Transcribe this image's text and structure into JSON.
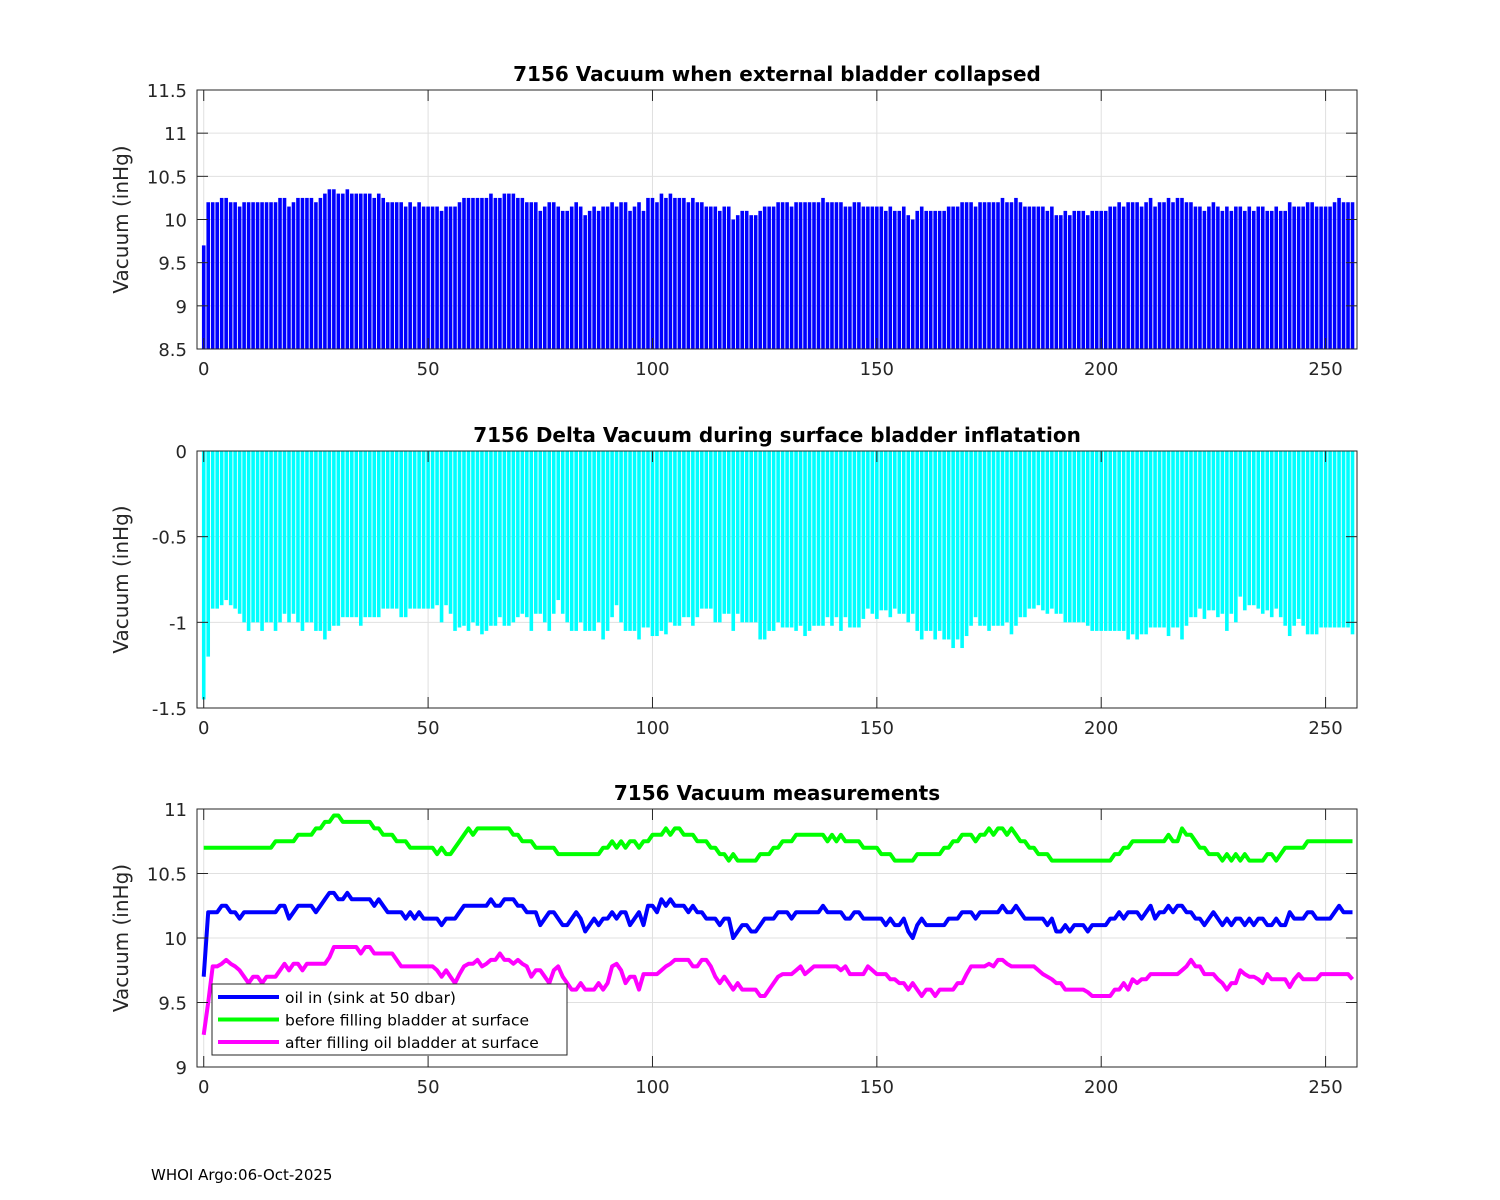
{
  "footer": "WHOI Argo:06-Oct-2025",
  "colors": {
    "oil_in": "#0000ff",
    "before": "#00ff00",
    "after": "#ff00ff",
    "delta_bar": "#00ffff",
    "grid": "#e0e0e0",
    "axis": "#262626"
  },
  "chart_data": [
    {
      "type": "bar",
      "title": "7156 Vacuum when external bladder collapsed",
      "xlabel": "",
      "ylabel": "Vacuum (inHg)",
      "xlim": [
        -1.5,
        257
      ],
      "ylim": [
        8.5,
        11.5
      ],
      "xticks": [
        0,
        50,
        100,
        150,
        200,
        250
      ],
      "yticks": [
        8.5,
        9,
        9.5,
        10,
        10.5,
        11,
        11.5
      ],
      "ytick_labels": [
        "8.5",
        "9",
        "9.5",
        "10",
        "10.5",
        "11",
        "11.5"
      ],
      "grid": true,
      "values_from": "oil_in"
    },
    {
      "type": "bar",
      "title": "7156 Delta Vacuum during surface bladder inflatation",
      "xlabel": "",
      "ylabel": "Vacuum (inHg)",
      "xlim": [
        -1.5,
        257
      ],
      "ylim": [
        -1.5,
        0
      ],
      "xticks": [
        0,
        50,
        100,
        150,
        200,
        250
      ],
      "yticks": [
        -1.5,
        -1,
        -0.5,
        0
      ],
      "ytick_labels": [
        "-1.5",
        "-1",
        "-0.5",
        "0"
      ],
      "grid": true,
      "values_from": "after minus before"
    },
    {
      "type": "line",
      "title": "7156 Vacuum measurements",
      "xlabel": "",
      "ylabel": "Vacuum (inHg)",
      "xlim": [
        -1.5,
        257
      ],
      "ylim": [
        9,
        11
      ],
      "xticks": [
        0,
        50,
        100,
        150,
        200,
        250
      ],
      "yticks": [
        9,
        9.5,
        10,
        10.5,
        11
      ],
      "ytick_labels": [
        "9",
        "9.5",
        "10",
        "10.5",
        "11"
      ],
      "grid": true,
      "legend_position": "bottom-left",
      "series": [
        {
          "key": "oil_in",
          "name": "oil in (sink at 50 dbar)",
          "values": [
            9.7,
            10.2,
            10.2,
            10.2,
            10.25,
            10.25,
            10.2,
            10.2,
            10.15,
            10.2,
            10.2,
            10.2,
            10.2,
            10.2,
            10.2,
            10.2,
            10.2,
            10.25,
            10.25,
            10.15,
            10.2,
            10.25,
            10.25,
            10.25,
            10.25,
            10.2,
            10.25,
            10.3,
            10.35,
            10.35,
            10.3,
            10.3,
            10.35,
            10.3,
            10.3,
            10.3,
            10.3,
            10.3,
            10.25,
            10.3,
            10.25,
            10.2,
            10.2,
            10.2,
            10.2,
            10.15,
            10.2,
            10.15,
            10.2,
            10.15,
            10.15,
            10.15,
            10.15,
            10.1,
            10.15,
            10.15,
            10.15,
            10.2,
            10.25,
            10.25,
            10.25,
            10.25,
            10.25,
            10.25,
            10.3,
            10.25,
            10.25,
            10.3,
            10.3,
            10.3,
            10.25,
            10.25,
            10.2,
            10.2,
            10.2,
            10.1,
            10.15,
            10.2,
            10.2,
            10.15,
            10.1,
            10.1,
            10.15,
            10.2,
            10.15,
            10.05,
            10.1,
            10.15,
            10.1,
            10.15,
            10.15,
            10.2,
            10.15,
            10.2,
            10.2,
            10.1,
            10.15,
            10.2,
            10.1,
            10.25,
            10.25,
            10.2,
            10.3,
            10.25,
            10.3,
            10.25,
            10.25,
            10.25,
            10.2,
            10.25,
            10.2,
            10.2,
            10.15,
            10.15,
            10.15,
            10.1,
            10.15,
            10.15,
            10.0,
            10.05,
            10.1,
            10.1,
            10.05,
            10.05,
            10.1,
            10.15,
            10.15,
            10.15,
            10.2,
            10.2,
            10.2,
            10.15,
            10.2,
            10.2,
            10.2,
            10.2,
            10.2,
            10.2,
            10.25,
            10.2,
            10.2,
            10.2,
            10.2,
            10.15,
            10.15,
            10.2,
            10.2,
            10.15,
            10.15,
            10.15,
            10.15,
            10.15,
            10.1,
            10.15,
            10.1,
            10.1,
            10.15,
            10.05,
            10.0,
            10.1,
            10.15,
            10.1,
            10.1,
            10.1,
            10.1,
            10.1,
            10.15,
            10.15,
            10.15,
            10.2,
            10.2,
            10.2,
            10.15,
            10.2,
            10.2,
            10.2,
            10.2,
            10.2,
            10.25,
            10.2,
            10.2,
            10.25,
            10.2,
            10.15,
            10.15,
            10.15,
            10.15,
            10.15,
            10.1,
            10.15,
            10.05,
            10.05,
            10.1,
            10.05,
            10.1,
            10.1,
            10.1,
            10.05,
            10.1,
            10.1,
            10.1,
            10.1,
            10.15,
            10.15,
            10.2,
            10.15,
            10.2,
            10.2,
            10.2,
            10.15,
            10.2,
            10.25,
            10.15,
            10.2,
            10.2,
            10.25,
            10.2,
            10.25,
            10.25,
            10.2,
            10.2,
            10.15,
            10.15,
            10.1,
            10.15,
            10.2,
            10.15,
            10.1,
            10.15,
            10.1,
            10.15,
            10.15,
            10.1,
            10.15,
            10.1,
            10.15,
            10.15,
            10.1,
            10.1,
            10.15,
            10.1,
            10.1,
            10.2,
            10.15,
            10.15,
            10.15,
            10.2,
            10.2,
            10.15,
            10.15,
            10.15,
            10.15,
            10.2,
            10.25,
            10.2,
            10.2,
            10.2
          ]
        },
        {
          "key": "before",
          "name": "before filling bladder at surface",
          "values": [
            10.7,
            10.7,
            10.7,
            10.7,
            10.7,
            10.7,
            10.7,
            10.7,
            10.7,
            10.7,
            10.7,
            10.7,
            10.7,
            10.7,
            10.7,
            10.7,
            10.75,
            10.75,
            10.75,
            10.75,
            10.75,
            10.8,
            10.8,
            10.8,
            10.8,
            10.85,
            10.85,
            10.9,
            10.9,
            10.95,
            10.95,
            10.9,
            10.9,
            10.9,
            10.9,
            10.9,
            10.9,
            10.9,
            10.85,
            10.85,
            10.8,
            10.8,
            10.8,
            10.75,
            10.75,
            10.75,
            10.7,
            10.7,
            10.7,
            10.7,
            10.7,
            10.7,
            10.65,
            10.7,
            10.65,
            10.65,
            10.7,
            10.75,
            10.8,
            10.85,
            10.8,
            10.85,
            10.85,
            10.85,
            10.85,
            10.85,
            10.85,
            10.85,
            10.85,
            10.8,
            10.8,
            10.75,
            10.75,
            10.75,
            10.7,
            10.7,
            10.7,
            10.7,
            10.7,
            10.65,
            10.65,
            10.65,
            10.65,
            10.65,
            10.65,
            10.65,
            10.65,
            10.65,
            10.65,
            10.7,
            10.7,
            10.75,
            10.7,
            10.75,
            10.7,
            10.75,
            10.75,
            10.7,
            10.75,
            10.75,
            10.8,
            10.8,
            10.8,
            10.85,
            10.8,
            10.85,
            10.85,
            10.8,
            10.8,
            10.8,
            10.75,
            10.75,
            10.75,
            10.7,
            10.7,
            10.65,
            10.65,
            10.6,
            10.65,
            10.6,
            10.6,
            10.6,
            10.6,
            10.6,
            10.65,
            10.65,
            10.65,
            10.7,
            10.7,
            10.75,
            10.75,
            10.75,
            10.8,
            10.8,
            10.8,
            10.8,
            10.8,
            10.8,
            10.8,
            10.75,
            10.8,
            10.75,
            10.8,
            10.75,
            10.75,
            10.75,
            10.75,
            10.7,
            10.7,
            10.7,
            10.7,
            10.65,
            10.65,
            10.65,
            10.6,
            10.6,
            10.6,
            10.6,
            10.6,
            10.65,
            10.65,
            10.65,
            10.65,
            10.65,
            10.65,
            10.7,
            10.7,
            10.75,
            10.75,
            10.8,
            10.8,
            10.8,
            10.75,
            10.8,
            10.8,
            10.85,
            10.8,
            10.85,
            10.85,
            10.8,
            10.85,
            10.8,
            10.75,
            10.75,
            10.7,
            10.7,
            10.65,
            10.65,
            10.65,
            10.6,
            10.6,
            10.6,
            10.6,
            10.6,
            10.6,
            10.6,
            10.6,
            10.6,
            10.6,
            10.6,
            10.6,
            10.6,
            10.6,
            10.65,
            10.65,
            10.7,
            10.7,
            10.75,
            10.75,
            10.75,
            10.75,
            10.75,
            10.75,
            10.75,
            10.75,
            10.8,
            10.75,
            10.75,
            10.85,
            10.8,
            10.8,
            10.75,
            10.7,
            10.7,
            10.65,
            10.65,
            10.65,
            10.6,
            10.65,
            10.6,
            10.65,
            10.6,
            10.65,
            10.6,
            10.6,
            10.6,
            10.6,
            10.65,
            10.65,
            10.6,
            10.65,
            10.7,
            10.7,
            10.7,
            10.7,
            10.7,
            10.75,
            10.75,
            10.75,
            10.75,
            10.75,
            10.75,
            10.75,
            10.75,
            10.75,
            10.75,
            10.75
          ]
        },
        {
          "key": "after",
          "name": "after filling oil bladder at surface",
          "values": [
            9.25,
            9.5,
            9.78,
            9.78,
            9.8,
            9.83,
            9.8,
            9.78,
            9.75,
            9.7,
            9.65,
            9.7,
            9.7,
            9.65,
            9.7,
            9.7,
            9.7,
            9.75,
            9.8,
            9.75,
            9.8,
            9.8,
            9.75,
            9.8,
            9.8,
            9.8,
            9.8,
            9.8,
            9.85,
            9.93,
            9.93,
            9.93,
            9.93,
            9.93,
            9.93,
            9.88,
            9.93,
            9.93,
            9.88,
            9.88,
            9.88,
            9.88,
            9.88,
            9.83,
            9.78,
            9.78,
            9.78,
            9.78,
            9.78,
            9.78,
            9.78,
            9.78,
            9.75,
            9.7,
            9.75,
            9.7,
            9.65,
            9.72,
            9.78,
            9.8,
            9.8,
            9.83,
            9.78,
            9.8,
            9.83,
            9.83,
            9.88,
            9.83,
            9.83,
            9.8,
            9.83,
            9.8,
            9.78,
            9.7,
            9.75,
            9.75,
            9.7,
            9.65,
            9.75,
            9.78,
            9.7,
            9.65,
            9.6,
            9.6,
            9.65,
            9.6,
            9.6,
            9.6,
            9.65,
            9.6,
            9.65,
            9.78,
            9.8,
            9.75,
            9.65,
            9.7,
            9.7,
            9.6,
            9.72,
            9.72,
            9.72,
            9.72,
            9.75,
            9.78,
            9.8,
            9.83,
            9.83,
            9.83,
            9.83,
            9.78,
            9.78,
            9.83,
            9.83,
            9.78,
            9.7,
            9.65,
            9.7,
            9.65,
            9.6,
            9.65,
            9.6,
            9.6,
            9.6,
            9.6,
            9.55,
            9.55,
            9.6,
            9.65,
            9.7,
            9.72,
            9.72,
            9.72,
            9.75,
            9.78,
            9.72,
            9.75,
            9.78,
            9.78,
            9.78,
            9.78,
            9.78,
            9.78,
            9.75,
            9.78,
            9.72,
            9.72,
            9.72,
            9.72,
            9.78,
            9.75,
            9.72,
            9.72,
            9.72,
            9.68,
            9.68,
            9.65,
            9.65,
            9.6,
            9.65,
            9.6,
            9.55,
            9.6,
            9.6,
            9.55,
            9.6,
            9.6,
            9.6,
            9.6,
            9.65,
            9.65,
            9.72,
            9.78,
            9.78,
            9.78,
            9.78,
            9.8,
            9.78,
            9.83,
            9.83,
            9.8,
            9.78,
            9.78,
            9.78,
            9.78,
            9.78,
            9.78,
            9.75,
            9.72,
            9.7,
            9.68,
            9.65,
            9.65,
            9.6,
            9.6,
            9.6,
            9.6,
            9.6,
            9.58,
            9.55,
            9.55,
            9.55,
            9.55,
            9.55,
            9.6,
            9.6,
            9.65,
            9.6,
            9.68,
            9.65,
            9.68,
            9.68,
            9.72,
            9.72,
            9.72,
            9.72,
            9.72,
            9.72,
            9.72,
            9.75,
            9.78,
            9.83,
            9.78,
            9.78,
            9.72,
            9.72,
            9.72,
            9.68,
            9.65,
            9.6,
            9.65,
            9.65,
            9.75,
            9.72,
            9.7,
            9.7,
            9.68,
            9.65,
            9.72,
            9.68,
            9.68,
            9.68,
            9.68,
            9.62,
            9.68,
            9.72,
            9.68,
            9.68,
            9.68,
            9.68,
            9.72,
            9.72,
            9.72,
            9.72,
            9.72,
            9.72,
            9.72,
            9.68
          ]
        }
      ]
    }
  ]
}
